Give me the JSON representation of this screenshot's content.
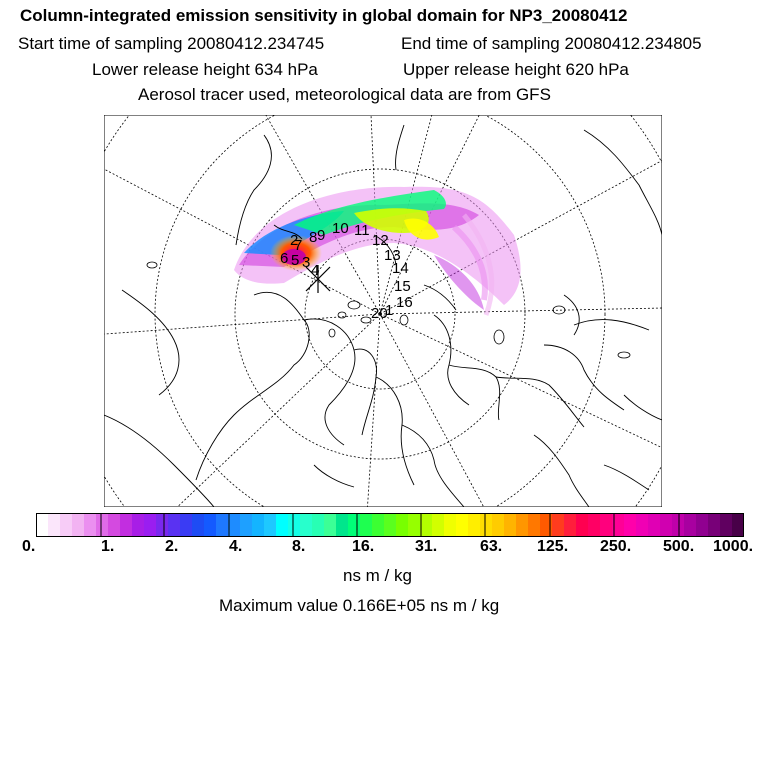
{
  "header": {
    "title": "Column-integrated emission sensitivity in global domain for NP3_20080412",
    "start_time": "Start time of sampling 20080412.234745",
    "end_time": "End time of sampling 20080412.234805",
    "lower_height": "Lower release height  634 hPa",
    "upper_height": "Upper release height  620 hPa",
    "tracer_info": "Aerosol tracer used, meteorological data are from GFS"
  },
  "map": {
    "projection": "polar stereographic (north)",
    "track_labels": [
      "1",
      "2",
      "3",
      "4",
      "5",
      "6",
      "7",
      "8",
      "9",
      "10",
      "11",
      "12",
      "13",
      "14",
      "15",
      "16",
      "20"
    ]
  },
  "colorbar": {
    "ticks": [
      "0.",
      "1.",
      "2.",
      "4.",
      "8.",
      "16.",
      "31.",
      "63.",
      "125.",
      "250.",
      "500.",
      "1000."
    ],
    "colors": [
      "#ffffff",
      "#fbe6fb",
      "#f7ccf7",
      "#f2b3f2",
      "#eb8ff0",
      "#e06be8",
      "#d44ae0",
      "#c22ee0",
      "#a81ee6",
      "#9a1ef0",
      "#7a28ee",
      "#5a32f2",
      "#3a3cf4",
      "#1e4cf4",
      "#145aff",
      "#1e78ff",
      "#1e8cff",
      "#1ea0ff",
      "#14b4ff",
      "#1ec8ff",
      "#00ffff",
      "#14ffe6",
      "#28ffcc",
      "#28ffb4",
      "#3cff96",
      "#00e68c",
      "#00ff78",
      "#1eff50",
      "#3cff32",
      "#5aff1e",
      "#78ff00",
      "#96ff00",
      "#b4ff00",
      "#d2ff00",
      "#f0ff00",
      "#ffff00",
      "#ffee00",
      "#ffdd00",
      "#ffcc00",
      "#ffb400",
      "#ff9600",
      "#ff7800",
      "#ff5a00",
      "#ff3c1e",
      "#ff1e3c",
      "#ff0050",
      "#ff0064",
      "#ff007d",
      "#ff0096",
      "#ff00aa",
      "#f000b4",
      "#e000b4",
      "#d000b0",
      "#c000aa",
      "#a800a0",
      "#900090",
      "#780078",
      "#600060",
      "#480048"
    ],
    "units": "ns m / kg",
    "max_value": "Maximum value  0.166E+05 ns m / kg"
  }
}
